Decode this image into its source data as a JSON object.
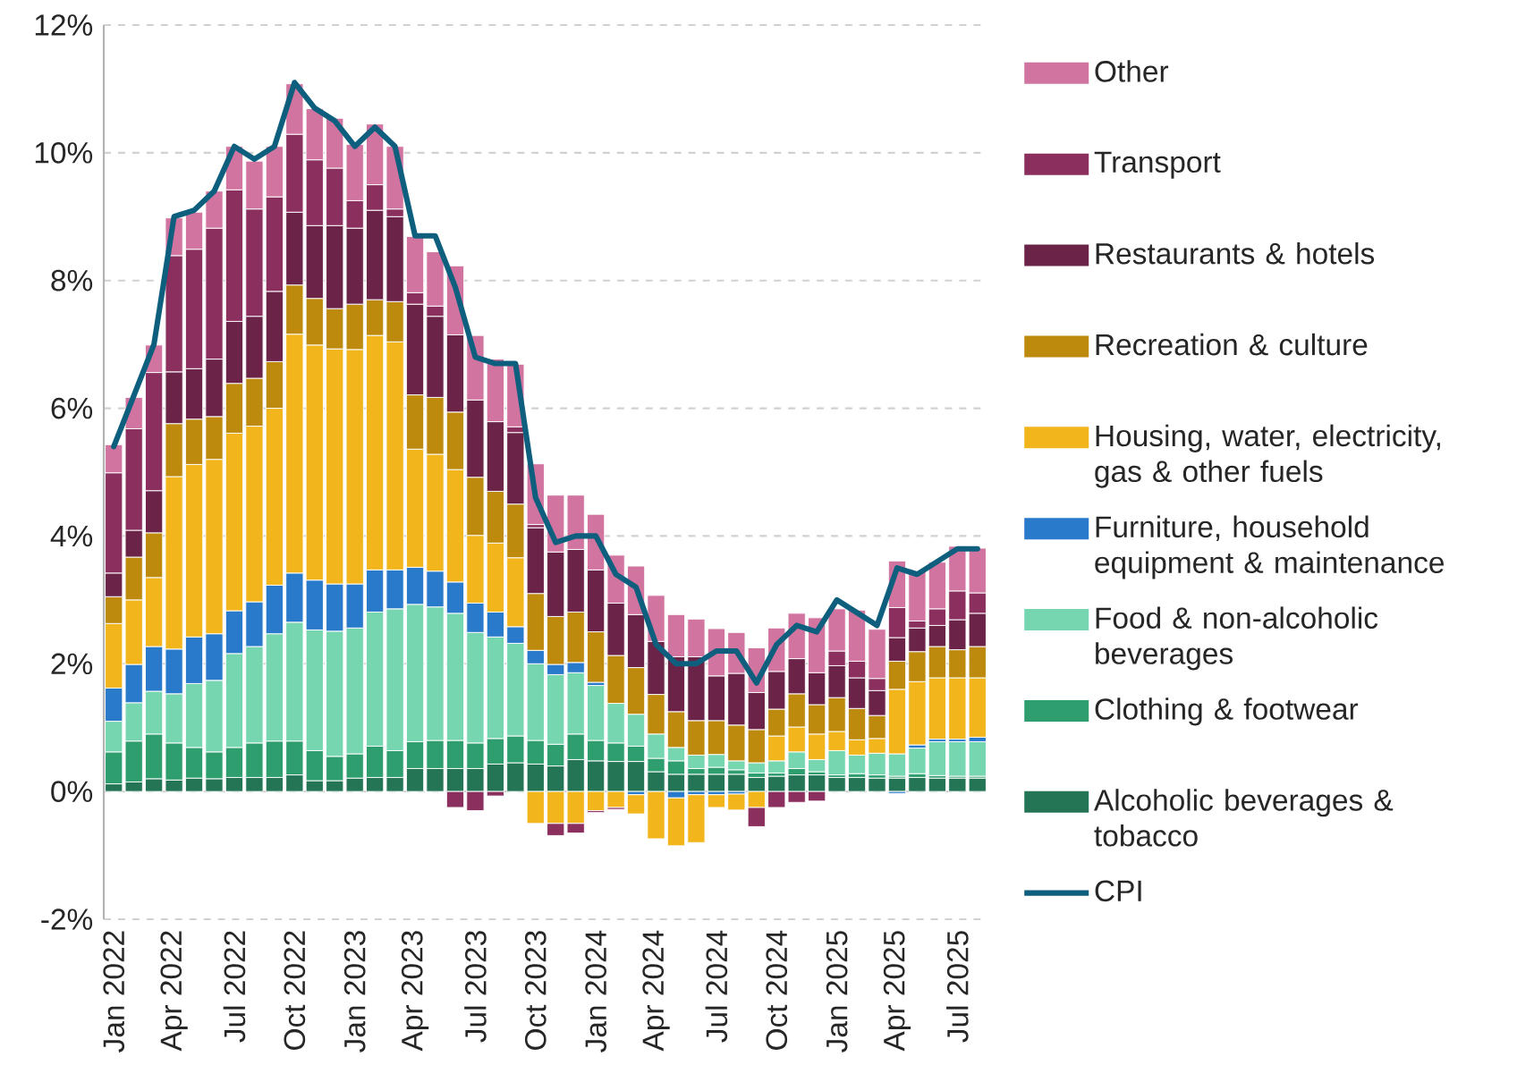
{
  "chart_data": {
    "type": "bar",
    "stacked": true,
    "grid": "y",
    "legend": "right",
    "categories": [
      "Jan 2022",
      null,
      null,
      "Apr 2022",
      null,
      null,
      "Jul 2022",
      null,
      null,
      "Oct 2022",
      null,
      null,
      "Jan 2023",
      null,
      null,
      "Apr 2023",
      null,
      null,
      "Jul 2023",
      null,
      null,
      "Oct 2023",
      null,
      null,
      "Jan 2024",
      null,
      null,
      "Apr 2024",
      null,
      null,
      "Jul 2024",
      null,
      null,
      "Oct 2024",
      null,
      null,
      "Jan 2025",
      null,
      null,
      "Apr 2025",
      null,
      null,
      "Jul 2025",
      null
    ],
    "ylim": [
      -2,
      12
    ],
    "yticks": [
      {
        "value": -2,
        "label": "-2%"
      },
      {
        "value": 0,
        "label": "0%"
      },
      {
        "value": 2,
        "label": "2%"
      },
      {
        "value": 4,
        "label": "4%"
      },
      {
        "value": 6,
        "label": "6%"
      },
      {
        "value": 8,
        "label": "8%"
      },
      {
        "value": 10,
        "label": "10%"
      },
      {
        "value": 12,
        "label": "12%"
      }
    ],
    "series": [
      {
        "name": "Alcoholic beverages & tobacco",
        "color": "#237556",
        "values": [
          0.12,
          0.15,
          0.2,
          0.18,
          0.21,
          0.2,
          0.22,
          0.22,
          0.22,
          0.26,
          0.17,
          0.17,
          0.21,
          0.22,
          0.22,
          0.36,
          0.36,
          0.36,
          0.36,
          0.43,
          0.45,
          0.43,
          0.4,
          0.5,
          0.48,
          0.47,
          0.47,
          0.31,
          0.27,
          0.27,
          0.27,
          0.27,
          0.22,
          0.24,
          0.26,
          0.26,
          0.22,
          0.22,
          0.21,
          0.21,
          0.22,
          0.21,
          0.21,
          0.21
        ]
      },
      {
        "name": "Clothing & footwear",
        "color": "#2f9e6e",
        "values": [
          0.5,
          0.64,
          0.7,
          0.58,
          0.48,
          0.42,
          0.47,
          0.54,
          0.57,
          0.53,
          0.47,
          0.38,
          0.38,
          0.49,
          0.42,
          0.42,
          0.44,
          0.44,
          0.4,
          0.4,
          0.42,
          0.37,
          0.34,
          0.4,
          0.32,
          0.29,
          0.24,
          0.21,
          0.21,
          0.09,
          0.11,
          0.07,
          0.07,
          0.05,
          0.1,
          0.05,
          0.04,
          0.06,
          0.05,
          0.03,
          0.06,
          0.04,
          0.03,
          0.03
        ]
      },
      {
        "name": "Food & non-alcoholic beverages",
        "color": "#75d6b0",
        "values": [
          0.48,
          0.6,
          0.67,
          0.77,
          1.0,
          1.12,
          1.47,
          1.51,
          1.68,
          1.86,
          1.89,
          1.96,
          1.97,
          2.1,
          2.22,
          2.15,
          2.09,
          1.99,
          1.73,
          1.59,
          1.45,
          1.2,
          1.09,
          0.96,
          0.86,
          0.62,
          0.5,
          0.38,
          0.21,
          0.21,
          0.2,
          0.14,
          0.16,
          0.19,
          0.26,
          0.19,
          0.38,
          0.29,
          0.34,
          0.35,
          0.4,
          0.53,
          0.54,
          0.54
        ]
      },
      {
        "name": "Furniture, household equipment & maintenance",
        "color": "#2a7acb",
        "values": [
          0.52,
          0.6,
          0.7,
          0.7,
          0.73,
          0.73,
          0.67,
          0.7,
          0.76,
          0.77,
          0.78,
          0.74,
          0.69,
          0.66,
          0.61,
          0.58,
          0.56,
          0.49,
          0.46,
          0.39,
          0.26,
          0.21,
          0.16,
          0.16,
          0.05,
          0.0,
          -0.05,
          null,
          -0.1,
          -0.05,
          -0.05,
          -0.04,
          0.0,
          0.0,
          0.0,
          0.0,
          null,
          null,
          null,
          -0.03,
          0.05,
          0.04,
          0.04,
          0.07
        ]
      },
      {
        "name": "Housing, water, electricity, gas & other fuels",
        "color": "#f2b51c",
        "values": [
          1.01,
          1.01,
          1.08,
          2.7,
          2.7,
          2.73,
          2.78,
          2.75,
          2.77,
          3.74,
          3.68,
          3.68,
          3.67,
          3.67,
          3.57,
          1.85,
          1.83,
          1.76,
          1.06,
          1.08,
          1.08,
          -0.5,
          -0.5,
          -0.5,
          -0.3,
          -0.25,
          -0.3,
          -0.74,
          -0.75,
          -0.75,
          -0.2,
          -0.25,
          -0.25,
          0.39,
          0.39,
          0.4,
          0.3,
          0.24,
          0.23,
          1.01,
          0.99,
          0.96,
          0.96,
          0.93
        ]
      },
      {
        "name": "Recreation & culture",
        "color": "#bd8a0e",
        "values": [
          0.42,
          0.67,
          0.7,
          0.83,
          0.71,
          0.67,
          0.78,
          0.75,
          0.73,
          0.77,
          0.73,
          0.63,
          0.71,
          0.56,
          0.63,
          0.85,
          0.89,
          0.9,
          0.91,
          0.81,
          0.84,
          0.89,
          0.75,
          0.79,
          0.79,
          0.75,
          0.73,
          0.62,
          0.56,
          0.54,
          0.53,
          0.56,
          0.52,
          0.42,
          0.52,
          0.46,
          0.53,
          0.49,
          0.36,
          0.44,
          0.47,
          0.49,
          0.44,
          0.49
        ]
      },
      {
        "name": "Restaurants & hotels",
        "color": "#6b2448",
        "values": [
          0.37,
          0.42,
          0.66,
          0.81,
          0.79,
          0.9,
          0.97,
          0.97,
          1.1,
          1.14,
          1.14,
          1.3,
          1.19,
          1.4,
          1.33,
          1.42,
          1.27,
          1.21,
          1.21,
          1.09,
          1.12,
          1.03,
          1.01,
          0.98,
          0.97,
          0.82,
          0.83,
          0.83,
          0.86,
          1.0,
          0.7,
          0.81,
          0.58,
          0.59,
          0.55,
          0.5,
          0.5,
          0.48,
          0.39,
          0.37,
          0.37,
          0.33,
          0.47,
          0.52
        ]
      },
      {
        "name": "Transport",
        "color": "#8b2f5f",
        "values": [
          1.57,
          1.59,
          1.85,
          1.82,
          1.87,
          2.05,
          2.06,
          1.68,
          1.48,
          1.22,
          1.03,
          0.9,
          0.43,
          0.4,
          0.12,
          0.18,
          0.16,
          -0.25,
          -0.3,
          -0.07,
          0.09,
          0.05,
          -0.19,
          -0.15,
          -0.03,
          -0.03,
          0.0,
          0.0,
          0.0,
          0.0,
          0.0,
          0.0,
          -0.3,
          -0.25,
          -0.17,
          -0.15,
          0.23,
          0.26,
          0.19,
          0.47,
          0.11,
          0.26,
          0.45,
          0.32
        ]
      },
      {
        "name": "Other",
        "color": "#d174a0",
        "values": [
          0.44,
          0.49,
          0.43,
          0.59,
          0.58,
          0.58,
          0.68,
          0.75,
          0.79,
          0.79,
          0.8,
          0.78,
          0.88,
          0.95,
          0.98,
          0.88,
          0.85,
          1.08,
          1.01,
          0.98,
          0.98,
          0.95,
          0.89,
          0.85,
          0.87,
          0.75,
          0.76,
          0.72,
          0.66,
          0.59,
          0.74,
          0.64,
          0.7,
          0.68,
          0.71,
          0.86,
          0.66,
          0.8,
          0.77,
          0.73,
          0.77,
          0.73,
          0.7,
          0.7
        ]
      },
      {
        "name": "CPI",
        "type": "line",
        "color": "#0e5f7e",
        "values": [
          5.4,
          6.2,
          7.0,
          9.0,
          9.1,
          9.4,
          10.1,
          9.9,
          10.1,
          11.1,
          10.7,
          10.5,
          10.1,
          10.4,
          10.1,
          8.7,
          8.7,
          7.9,
          6.8,
          6.7,
          6.7,
          4.6,
          3.9,
          4.0,
          4.0,
          3.4,
          3.2,
          2.3,
          2.0,
          2.0,
          2.2,
          2.2,
          1.7,
          2.3,
          2.6,
          2.5,
          3.0,
          2.8,
          2.6,
          3.5,
          3.4,
          3.6,
          3.8,
          3.8
        ]
      }
    ]
  }
}
